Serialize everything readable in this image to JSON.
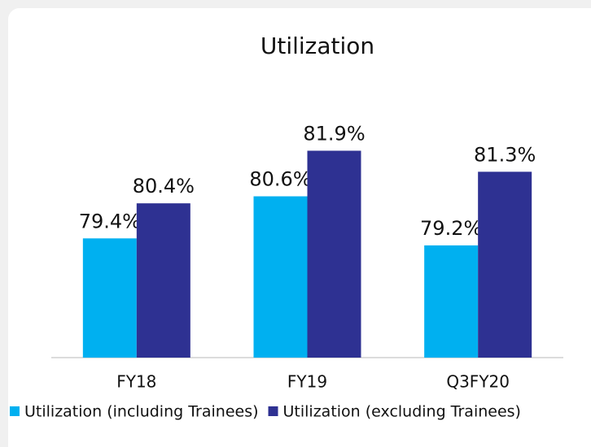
{
  "chart_data": {
    "type": "bar",
    "title": "Utilization",
    "categories": [
      "FY18",
      "FY19",
      "Q3FY20"
    ],
    "series": [
      {
        "name": "Utilization (including Trainees)",
        "color": "#00b0f0",
        "values": [
          79.4,
          80.6,
          79.2
        ],
        "value_labels": [
          "79.4%",
          "80.6%",
          "79.2%"
        ]
      },
      {
        "name": "Utilization (excluding Trainees)",
        "color": "#2e3192",
        "values": [
          80.4,
          81.9,
          81.3
        ],
        "value_labels": [
          "80.4%",
          "81.9%",
          "81.3%"
        ]
      }
    ],
    "ylim": [
      76,
      83
    ]
  }
}
